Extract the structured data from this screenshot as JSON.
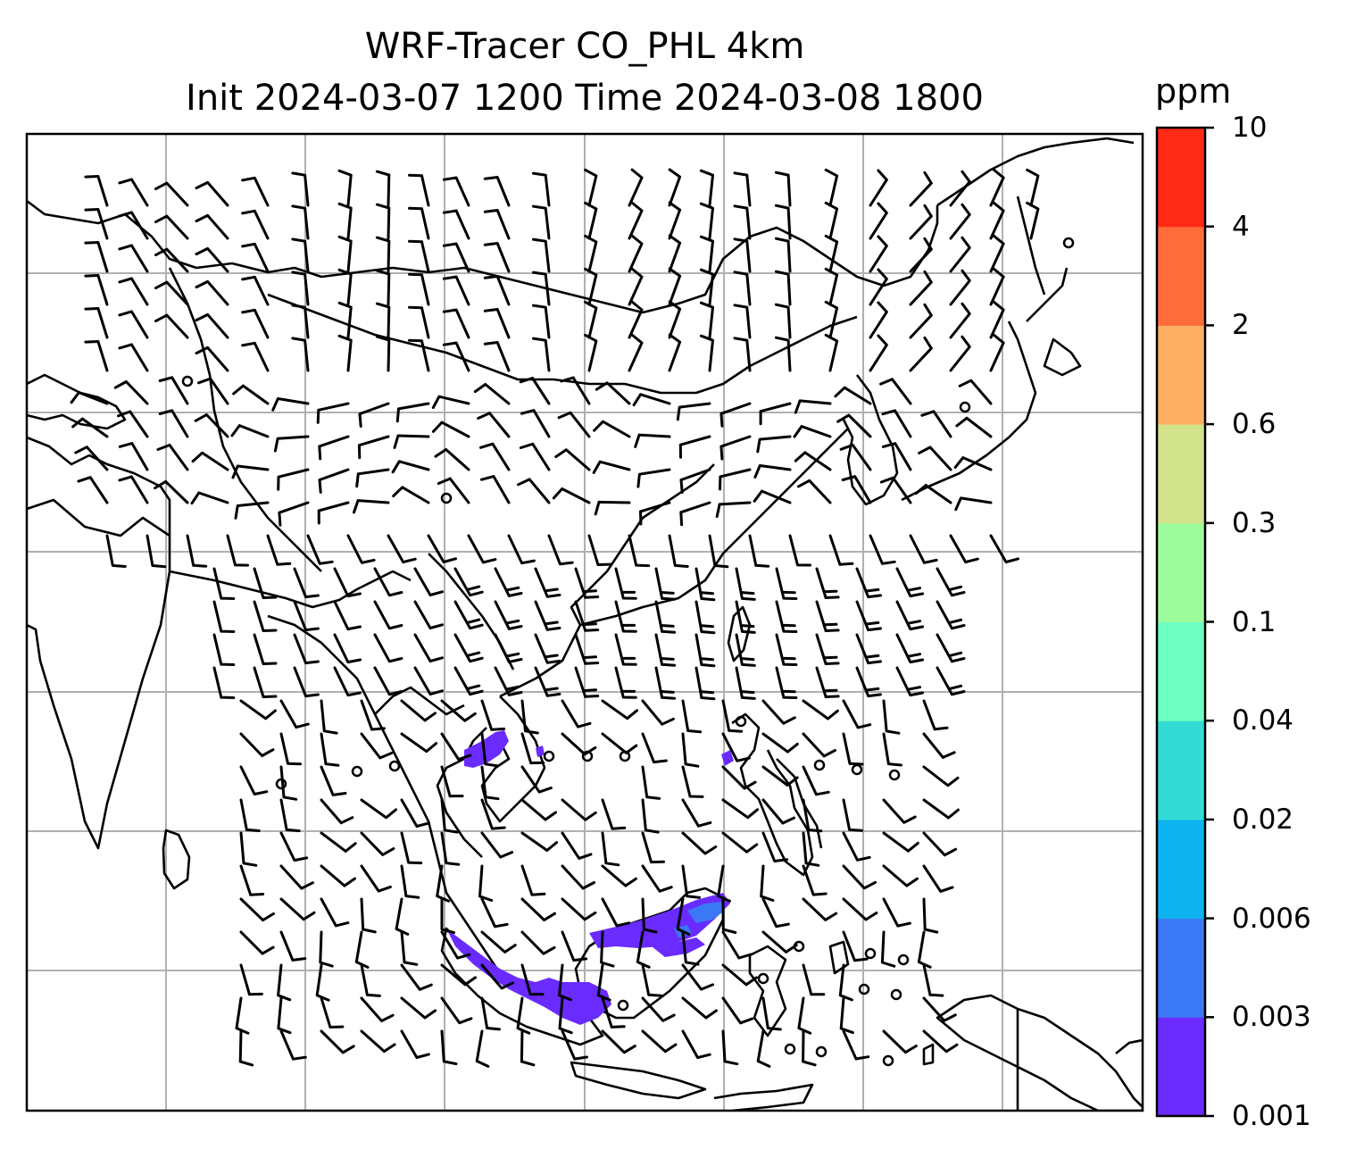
{
  "title": {
    "line1": "WRF-Tracer CO_PHL 4km",
    "line2": "Init 2024-03-07 1200 Time 2024-03-08 1800"
  },
  "colorbar": {
    "unit": "ppm",
    "levels": [
      "0.001",
      "0.003",
      "0.006",
      "0.02",
      "0.04",
      "0.1",
      "0.3",
      "0.6",
      "2",
      "4",
      "10"
    ],
    "colors": [
      "#6a2bff",
      "#3a78f5",
      "#0db3ee",
      "#32dcd4",
      "#6effc4",
      "#9efc9c",
      "#d2e38c",
      "#fdb062",
      "#ff6c3a",
      "#ff2a16"
    ]
  },
  "map": {
    "gridlines": true,
    "coastline_color": "#000000",
    "grid_color": "#b0b0b0",
    "tracer_color": "#6a2bff",
    "barb_color": "#000000"
  }
}
